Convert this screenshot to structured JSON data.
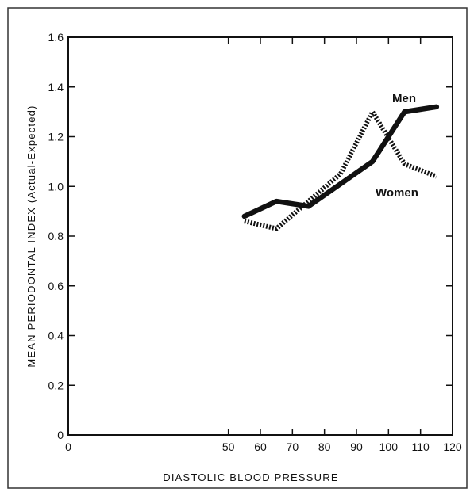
{
  "chart_data": {
    "type": "line",
    "title": "",
    "xlabel": "DIASTOLIC BLOOD PRESSURE",
    "ylabel": "MEAN PERIODONTAL INDEX (Actual-Expected)",
    "xlim": [
      0,
      120
    ],
    "ylim": [
      0,
      1.6
    ],
    "x_ticks": [
      "0",
      "50",
      "60",
      "70",
      "80",
      "90",
      "100",
      "110",
      "120"
    ],
    "y_ticks": [
      "0",
      "0.2",
      "0.4",
      "0.6",
      "0.8",
      "1.0",
      "1.2",
      "1.4",
      "1.6"
    ],
    "grid": false,
    "series": [
      {
        "name": "Men",
        "x": [
          55,
          65,
          75,
          85,
          95,
          105,
          115
        ],
        "values": [
          0.88,
          0.94,
          0.92,
          1.01,
          1.1,
          1.3,
          1.32
        ],
        "style": "solid"
      },
      {
        "name": "Women",
        "x": [
          55,
          65,
          75,
          85,
          95,
          105,
          115
        ],
        "values": [
          0.86,
          0.83,
          0.94,
          1.05,
          1.3,
          1.09,
          1.04
        ],
        "style": "dotted"
      }
    ]
  }
}
